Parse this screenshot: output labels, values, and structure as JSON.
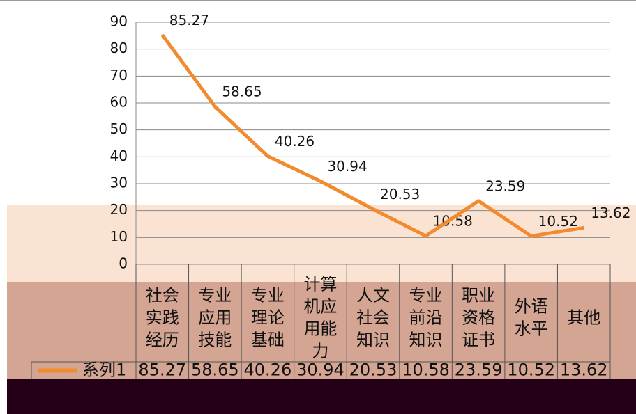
{
  "chart_data": {
    "type": "line",
    "categories": [
      "社会实践经历",
      "专业应用技能",
      "专业理论基础",
      "计算机应用能力",
      "人文社会知识",
      "专业前沿知识",
      "职业资格证书",
      "外语水平",
      "其他"
    ],
    "series": [
      {
        "name": "系列1",
        "color": "#f28a2e",
        "values": [
          85.27,
          58.65,
          40.26,
          30.94,
          20.53,
          10.58,
          23.59,
          10.52,
          13.62
        ]
      }
    ],
    "ylim": [
      0,
      90
    ],
    "yticks": [
      0,
      10,
      20,
      30,
      40,
      50,
      60,
      70,
      80,
      90
    ],
    "grid": true
  }
}
